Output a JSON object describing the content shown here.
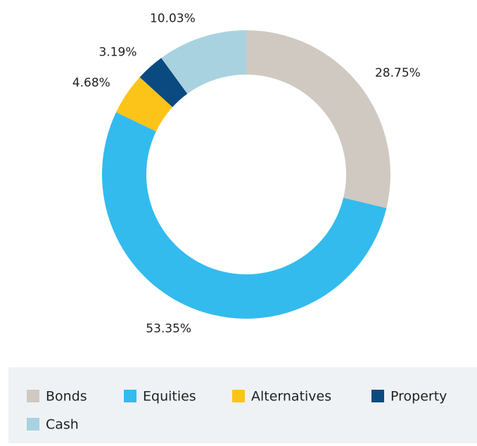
{
  "chart_data": {
    "type": "donut",
    "categories": [
      "Bonds",
      "Equities",
      "Alternatives",
      "Property",
      "Cash"
    ],
    "values": [
      28.75,
      53.35,
      4.68,
      3.19,
      10.03
    ],
    "value_labels": [
      "28.75%",
      "53.35%",
      "4.68%",
      "3.19%",
      "10.03%"
    ],
    "colors": [
      "#d0c9c2",
      "#33bbee",
      "#fcc419",
      "#0b4a80",
      "#a9d2e0"
    ]
  }
}
